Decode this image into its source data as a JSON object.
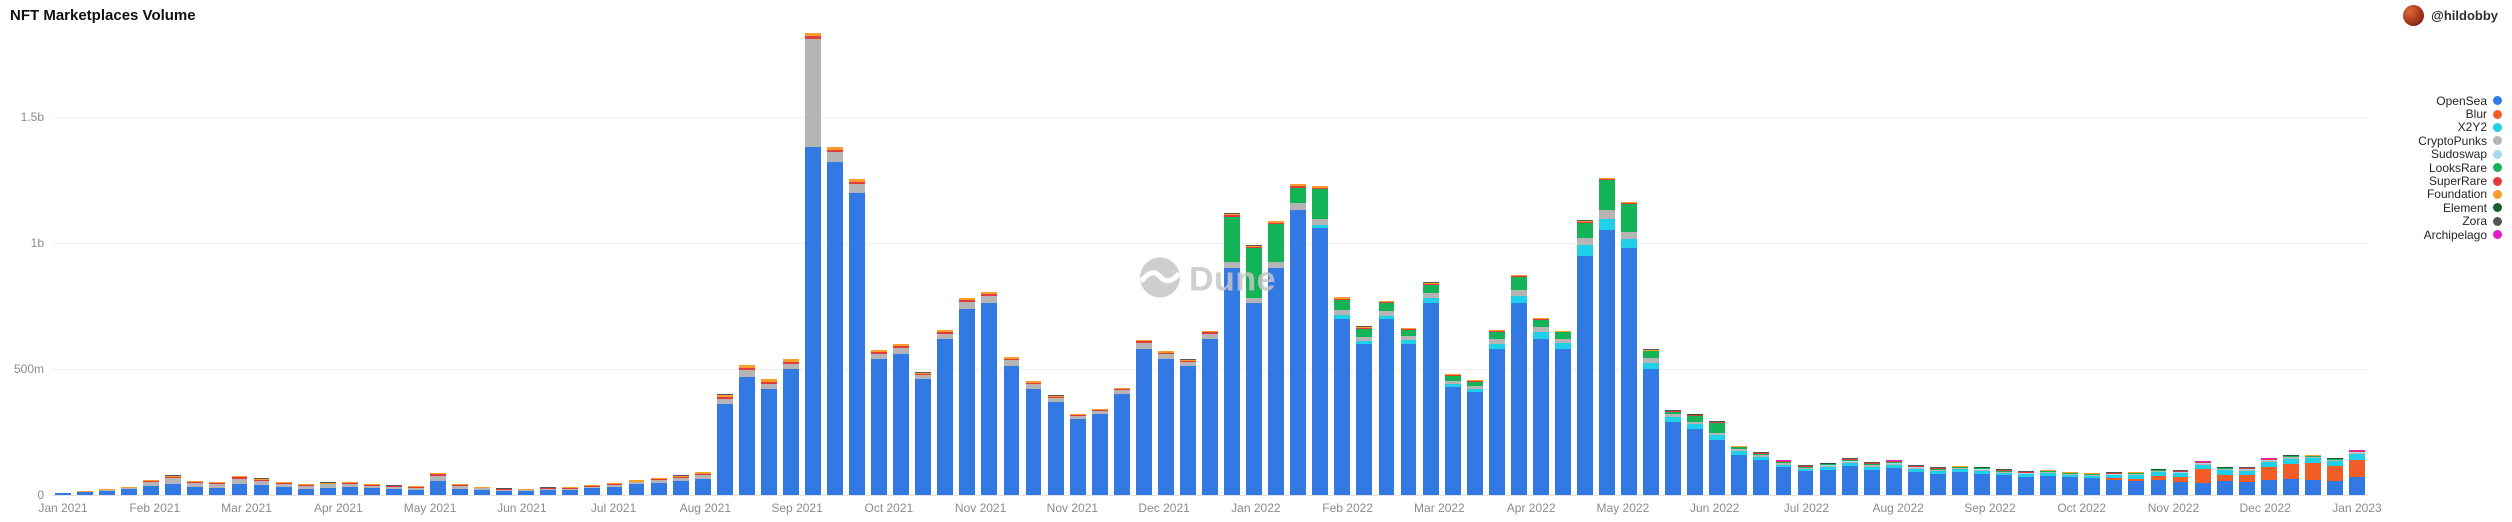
{
  "header": {
    "title": "NFT Marketplaces Volume",
    "attribution": "@hildobby"
  },
  "watermark": {
    "text": "Dune"
  },
  "chart_data": {
    "type": "bar",
    "stacked": true,
    "title": "NFT Marketplaces Volume",
    "y_unit": "USD (m = millions, b = billions)",
    "ylim": [
      0,
      1850
    ],
    "grid": true,
    "legend_position": "right",
    "y_ticks": [
      {
        "value": 0,
        "label": "0"
      },
      {
        "value": 500,
        "label": "500m"
      },
      {
        "value": 1000,
        "label": "1b"
      },
      {
        "value": 1500,
        "label": "1.5b"
      }
    ],
    "x_tick_labels": [
      "Jan 2021",
      "Feb 2021",
      "Mar 2021",
      "Apr 2021",
      "May 2021",
      "Jun 2021",
      "Jul 2021",
      "Aug 2021",
      "Sep 2021",
      "Oct 2021",
      "Nov 2021",
      "Nov 2021",
      "Dec 2021",
      "Jan 2022",
      "Feb 2022",
      "Mar 2022",
      "Apr 2022",
      "May 2022",
      "Jun 2022",
      "Jul 2022",
      "Aug 2022",
      "Sep 2022",
      "Oct 2022",
      "Nov 2022",
      "Dec 2022",
      "Jan 2023"
    ],
    "weeks": [
      "2021-01-04",
      "2021-01-11",
      "2021-01-18",
      "2021-01-25",
      "2021-02-01",
      "2021-02-08",
      "2021-02-15",
      "2021-02-22",
      "2021-03-01",
      "2021-03-08",
      "2021-03-15",
      "2021-03-22",
      "2021-03-29",
      "2021-04-05",
      "2021-04-12",
      "2021-04-19",
      "2021-04-26",
      "2021-05-03",
      "2021-05-10",
      "2021-05-17",
      "2021-05-24",
      "2021-05-31",
      "2021-06-07",
      "2021-06-14",
      "2021-06-21",
      "2021-06-28",
      "2021-07-05",
      "2021-07-12",
      "2021-07-19",
      "2021-07-26",
      "2021-08-02",
      "2021-08-09",
      "2021-08-16",
      "2021-08-23",
      "2021-08-30",
      "2021-09-06",
      "2021-09-13",
      "2021-09-20",
      "2021-09-27",
      "2021-10-04",
      "2021-10-11",
      "2021-10-18",
      "2021-10-25",
      "2021-11-01",
      "2021-11-08",
      "2021-11-15",
      "2021-11-22",
      "2021-11-29",
      "2021-12-06",
      "2021-12-13",
      "2021-12-20",
      "2021-12-27",
      "2022-01-03",
      "2022-01-10",
      "2022-01-17",
      "2022-01-24",
      "2022-01-31",
      "2022-02-07",
      "2022-02-14",
      "2022-02-21",
      "2022-02-28",
      "2022-03-07",
      "2022-03-14",
      "2022-03-21",
      "2022-03-28",
      "2022-04-04",
      "2022-04-11",
      "2022-04-18",
      "2022-04-25",
      "2022-05-02",
      "2022-05-09",
      "2022-05-16",
      "2022-05-23",
      "2022-05-30",
      "2022-06-06",
      "2022-06-13",
      "2022-06-20",
      "2022-06-27",
      "2022-07-04",
      "2022-07-11",
      "2022-07-18",
      "2022-07-25",
      "2022-08-01",
      "2022-08-08",
      "2022-08-15",
      "2022-08-22",
      "2022-08-29",
      "2022-09-05",
      "2022-09-12",
      "2022-09-19",
      "2022-09-26",
      "2022-10-03",
      "2022-10-10",
      "2022-10-17",
      "2022-10-24",
      "2022-10-31",
      "2022-11-07",
      "2022-11-14",
      "2022-11-21",
      "2022-11-28",
      "2022-12-05",
      "2022-12-12",
      "2022-12-19",
      "2022-12-26",
      "2023-01-02"
    ],
    "series": [
      {
        "name": "OpenSea",
        "color": "#3379E3",
        "values": [
          6,
          10,
          16,
          22,
          35,
          42,
          30,
          28,
          45,
          38,
          30,
          25,
          28,
          30,
          26,
          22,
          20,
          55,
          25,
          18,
          15,
          14,
          18,
          20,
          26,
          32,
          42,
          48,
          55,
          65,
          360,
          470,
          420,
          500,
          1380,
          1320,
          1200,
          540,
          560,
          460,
          620,
          740,
          760,
          510,
          420,
          370,
          300,
          320,
          400,
          580,
          540,
          510,
          620,
          900,
          760,
          900,
          1130,
          1060,
          700,
          600,
          700,
          600,
          760,
          430,
          410,
          580,
          760,
          620,
          580,
          950,
          1050,
          980,
          500,
          290,
          260,
          220,
          160,
          140,
          110,
          95,
          100,
          115,
          100,
          105,
          92,
          85,
          90,
          85,
          78,
          72,
          75,
          70,
          66,
          60,
          55,
          60,
          52,
          48,
          55,
          50,
          60,
          62,
          60,
          55,
          70
        ]
      },
      {
        "name": "Blur",
        "color": "#F25D27",
        "values": [
          0,
          0,
          0,
          0,
          0,
          0,
          0,
          0,
          0,
          0,
          0,
          0,
          0,
          0,
          0,
          0,
          0,
          0,
          0,
          0,
          0,
          0,
          0,
          0,
          0,
          0,
          0,
          0,
          0,
          0,
          0,
          0,
          0,
          0,
          0,
          0,
          0,
          0,
          0,
          0,
          0,
          0,
          0,
          0,
          0,
          0,
          0,
          0,
          0,
          0,
          0,
          0,
          0,
          0,
          0,
          0,
          0,
          0,
          0,
          0,
          0,
          0,
          0,
          0,
          0,
          0,
          0,
          0,
          0,
          0,
          0,
          0,
          0,
          0,
          0,
          0,
          0,
          0,
          0,
          0,
          0,
          0,
          0,
          0,
          0,
          0,
          0,
          0,
          0,
          0,
          0,
          0,
          0,
          6,
          10,
          14,
          20,
          55,
          25,
          30,
          50,
          60,
          65,
          60,
          70
        ]
      },
      {
        "name": "X2Y2",
        "color": "#1FD0E8",
        "values": [
          0,
          0,
          0,
          0,
          0,
          0,
          0,
          0,
          0,
          0,
          0,
          0,
          0,
          0,
          0,
          0,
          0,
          0,
          0,
          0,
          0,
          0,
          0,
          0,
          0,
          0,
          0,
          0,
          0,
          0,
          0,
          0,
          0,
          0,
          0,
          0,
          0,
          0,
          0,
          0,
          0,
          0,
          0,
          0,
          0,
          0,
          0,
          0,
          0,
          0,
          0,
          0,
          0,
          0,
          0,
          0,
          0,
          10,
          15,
          10,
          12,
          15,
          20,
          12,
          10,
          20,
          30,
          25,
          22,
          40,
          45,
          35,
          25,
          18,
          20,
          18,
          15,
          12,
          10,
          8,
          10,
          12,
          12,
          14,
          12,
          10,
          12,
          12,
          10,
          10,
          12,
          10,
          10,
          12,
          14,
          16,
          14,
          16,
          18,
          16,
          20,
          22,
          20,
          18,
          22
        ]
      },
      {
        "name": "CryptoPunks",
        "color": "#B5B5B5",
        "values": [
          1,
          2,
          3,
          4,
          18,
          25,
          18,
          15,
          20,
          18,
          15,
          12,
          14,
          12,
          10,
          9,
          8,
          22,
          12,
          8,
          6,
          5,
          6,
          5,
          6,
          7,
          8,
          10,
          12,
          15,
          20,
          25,
          22,
          20,
          430,
          40,
          35,
          20,
          25,
          15,
          20,
          25,
          30,
          25,
          20,
          15,
          12,
          12,
          15,
          25,
          20,
          18,
          20,
          25,
          20,
          25,
          30,
          25,
          20,
          15,
          18,
          15,
          20,
          12,
          12,
          18,
          25,
          20,
          18,
          30,
          35,
          30,
          20,
          12,
          10,
          8,
          7,
          6,
          5,
          4,
          5,
          5,
          5,
          5,
          4,
          4,
          4,
          4,
          3,
          3,
          4,
          3,
          3,
          3,
          4,
          4,
          3,
          4,
          4,
          4,
          5,
          5,
          5,
          4,
          5
        ]
      },
      {
        "name": "Sudoswap",
        "color": "#A9D7F2",
        "values": [
          0,
          0,
          0,
          0,
          0,
          0,
          0,
          0,
          0,
          0,
          0,
          0,
          0,
          0,
          0,
          0,
          0,
          0,
          0,
          0,
          0,
          0,
          0,
          0,
          0,
          0,
          0,
          0,
          0,
          0,
          0,
          0,
          0,
          0,
          0,
          0,
          0,
          0,
          0,
          0,
          0,
          0,
          0,
          0,
          0,
          0,
          0,
          0,
          0,
          0,
          0,
          0,
          0,
          0,
          0,
          0,
          0,
          0,
          0,
          0,
          0,
          0,
          0,
          0,
          0,
          0,
          0,
          0,
          0,
          0,
          0,
          0,
          0,
          0,
          0,
          0,
          0,
          0,
          1,
          2,
          2,
          3,
          3,
          3,
          2,
          2,
          2,
          2,
          2,
          2,
          2,
          2,
          2,
          2,
          2,
          2,
          2,
          2,
          2,
          2,
          2,
          2,
          2,
          2,
          2
        ]
      },
      {
        "name": "LooksRare",
        "color": "#15B358",
        "values": [
          0,
          0,
          0,
          0,
          0,
          0,
          0,
          0,
          0,
          0,
          0,
          0,
          0,
          0,
          0,
          0,
          0,
          0,
          0,
          0,
          0,
          0,
          0,
          0,
          0,
          0,
          0,
          0,
          0,
          0,
          0,
          0,
          0,
          0,
          0,
          0,
          0,
          0,
          0,
          0,
          0,
          0,
          0,
          0,
          0,
          0,
          0,
          0,
          0,
          0,
          0,
          0,
          0,
          180,
          200,
          150,
          60,
          120,
          40,
          35,
          30,
          25,
          35,
          20,
          18,
          30,
          50,
          30,
          25,
          60,
          120,
          110,
          25,
          10,
          25,
          40,
          8,
          6,
          5,
          4,
          4,
          5,
          4,
          4,
          3,
          3,
          3,
          3,
          3,
          2,
          2,
          2,
          2,
          2,
          2,
          2,
          2,
          2,
          2,
          2,
          2,
          2,
          2,
          2,
          2
        ]
      },
      {
        "name": "SuperRare",
        "color": "#E23C3C",
        "values": [
          1,
          1.5,
          2,
          2.5,
          4,
          5,
          4,
          3.5,
          5,
          4,
          4,
          3,
          3.5,
          4,
          3.5,
          3,
          3,
          5,
          3,
          2.5,
          2,
          2,
          2.5,
          2.5,
          3,
          3,
          3.5,
          4,
          4.5,
          5,
          8,
          9,
          8,
          8,
          10,
          9,
          8,
          6,
          6,
          5,
          6,
          7,
          7,
          6,
          5,
          4,
          4,
          4,
          4,
          5,
          5,
          4,
          5,
          5,
          5,
          5,
          6,
          5,
          4,
          4,
          4,
          3,
          4,
          3,
          3,
          3,
          4,
          3,
          3,
          4,
          4,
          4,
          3,
          2,
          2,
          2,
          2,
          2,
          2,
          2,
          2,
          2,
          2,
          2,
          2,
          2,
          2,
          2,
          2,
          2,
          2,
          2,
          2,
          2,
          2,
          2,
          2,
          2,
          2,
          2,
          2,
          2,
          2,
          2,
          2
        ]
      },
      {
        "name": "Foundation",
        "color": "#F99D2B",
        "values": [
          0,
          0.5,
          1,
          1.5,
          3,
          5,
          4,
          4,
          6,
          5,
          4,
          3.5,
          4,
          4,
          3.5,
          3,
          3,
          6,
          4,
          3,
          2.5,
          2.5,
          3,
          3,
          3.5,
          4,
          4.5,
          5,
          5.5,
          6,
          10,
          12,
          10,
          10,
          14,
          12,
          10,
          8,
          8,
          6,
          7,
          8,
          8,
          7,
          6,
          5,
          4,
          4,
          5,
          6,
          5,
          5,
          6,
          6,
          5,
          6,
          7,
          6,
          5,
          4,
          4,
          4,
          4,
          3,
          3,
          4,
          4,
          3,
          3,
          4,
          4,
          4,
          3,
          2,
          1.5,
          1.5,
          1,
          1,
          1,
          1,
          1,
          1,
          1,
          1,
          1,
          1,
          1,
          1,
          1,
          1,
          1,
          1,
          1,
          1,
          1,
          1,
          1,
          1,
          1,
          1,
          1,
          1,
          1,
          1,
          1
        ]
      },
      {
        "name": "Element",
        "color": "#175C33",
        "values": [
          0,
          0,
          0,
          0,
          0,
          0,
          0,
          0,
          0,
          0,
          0,
          0,
          0,
          0,
          0,
          0,
          0,
          0,
          0,
          0,
          0,
          0,
          0,
          0,
          0,
          0,
          0,
          0,
          0,
          0,
          0,
          0,
          0,
          0,
          0,
          0,
          0,
          0,
          0,
          0,
          0,
          0,
          0,
          0,
          0,
          0,
          0,
          0,
          0,
          0,
          0,
          0,
          0,
          0,
          0,
          0,
          0,
          0,
          0,
          0,
          0,
          0,
          0,
          0,
          0,
          0,
          0,
          0,
          0,
          0,
          0,
          0,
          0,
          0,
          1,
          1,
          1,
          1,
          1,
          1,
          1,
          1,
          1,
          1,
          1,
          1,
          1,
          1,
          1,
          1,
          1,
          1,
          1,
          1,
          1,
          1,
          1,
          1,
          1,
          1,
          1,
          1,
          1,
          1,
          1
        ]
      },
      {
        "name": "Zora",
        "color": "#565656",
        "values": [
          0.5,
          0.5,
          0.5,
          0.5,
          0.5,
          0.5,
          0.5,
          0.5,
          0.5,
          0.5,
          0.5,
          0.5,
          0.5,
          1,
          1,
          1,
          1,
          1,
          1,
          1,
          1,
          1,
          1,
          1,
          1,
          1,
          1,
          1,
          1,
          1,
          1,
          1,
          1,
          1,
          1,
          1,
          1,
          1,
          1,
          1,
          1,
          1,
          1,
          1,
          1,
          1,
          1,
          1,
          1,
          1,
          1,
          1,
          1.5,
          1.5,
          1.5,
          1.5,
          1.5,
          1.5,
          1.5,
          1.5,
          1.5,
          1.5,
          1.5,
          1.5,
          1.5,
          1.5,
          1.5,
          1.5,
          1.5,
          1.5,
          1.5,
          1.5,
          1.5,
          1.5,
          1.5,
          1.5,
          1.5,
          1.5,
          1.5,
          1.5,
          1.5,
          1.5,
          1.5,
          1.5,
          1.5,
          1.5,
          1.5,
          1.5,
          1.5,
          1.5,
          1.5,
          1.5,
          1.5,
          1.5,
          1.5,
          1.5,
          1.5,
          1.5,
          1.5,
          1.5,
          1.5,
          1.5,
          1.5,
          1.5,
          1.5
        ]
      },
      {
        "name": "Archipelago",
        "color": "#E618C8",
        "values": [
          0,
          0,
          0,
          0,
          0,
          0,
          0,
          0,
          0,
          0,
          0,
          0,
          0,
          0,
          0,
          0,
          0,
          0,
          0,
          0,
          0,
          0,
          0,
          0,
          0,
          0,
          0,
          0,
          0,
          0,
          0,
          0,
          0,
          0,
          0,
          0,
          0,
          0,
          0,
          0,
          0,
          0,
          0,
          0,
          0,
          0,
          0,
          0,
          0,
          0,
          0,
          0,
          0,
          0,
          0,
          0,
          0,
          0,
          0,
          0,
          0,
          0,
          0,
          0,
          0,
          0,
          0,
          0,
          0,
          0,
          0,
          0,
          0,
          0,
          0,
          0,
          0,
          0,
          0.5,
          0.5,
          0.5,
          0.5,
          0.5,
          0.5,
          0.5,
          0.5,
          0.5,
          0.5,
          0.5,
          0.5,
          0.5,
          0.5,
          0.5,
          0.5,
          0.5,
          0.5,
          0.5,
          0.5,
          0.5,
          0.5,
          0.5,
          0.5,
          0.5,
          0.5,
          0.5
        ]
      }
    ]
  }
}
